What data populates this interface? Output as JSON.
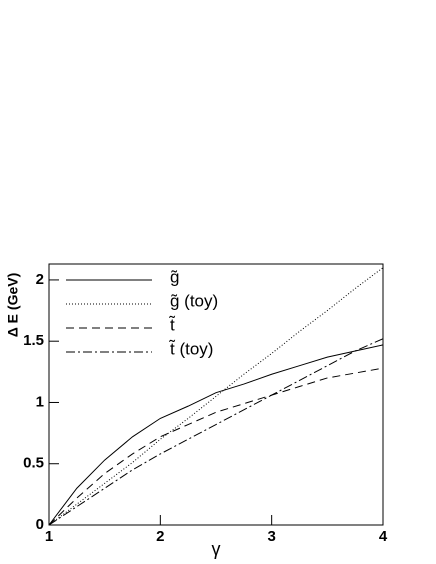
{
  "chart_data": {
    "type": "line",
    "x_label": "γ",
    "y_label": "Δ E (GeV)",
    "x": [
      1,
      1.25,
      1.5,
      1.75,
      2,
      2.25,
      2.5,
      2.75,
      3,
      3.25,
      3.5,
      3.75,
      4
    ],
    "series": [
      {
        "name": "g̃",
        "color": "#000000",
        "dash": "none",
        "values": [
          0,
          0.3,
          0.53,
          0.72,
          0.87,
          0.97,
          1.08,
          1.15,
          1.23,
          1.3,
          1.37,
          1.42,
          1.47
        ]
      },
      {
        "name": "g̃ (toy)",
        "color": "#000000",
        "dash": "1 2",
        "values": [
          0,
          0.17,
          0.34,
          0.51,
          0.7,
          0.87,
          1.05,
          1.23,
          1.4,
          1.58,
          1.75,
          1.93,
          2.1
        ]
      },
      {
        "name": "t̃",
        "color": "#000000",
        "dash": "8 5",
        "values": [
          0,
          0.22,
          0.42,
          0.58,
          0.72,
          0.82,
          0.92,
          0.99,
          1.06,
          1.13,
          1.2,
          1.24,
          1.28
        ]
      },
      {
        "name": "t̃ (toy)",
        "color": "#000000",
        "dash": "9 3 2 3",
        "values": [
          0,
          0.15,
          0.3,
          0.45,
          0.58,
          0.7,
          0.82,
          0.94,
          1.06,
          1.18,
          1.3,
          1.42,
          1.52
        ]
      }
    ],
    "xlim": [
      1,
      4
    ],
    "ylim": [
      0,
      2.13
    ],
    "xticks": [
      1,
      2,
      3,
      4
    ],
    "yticks": [
      0,
      0.5,
      1,
      1.5,
      2
    ],
    "legend": "top-left"
  }
}
